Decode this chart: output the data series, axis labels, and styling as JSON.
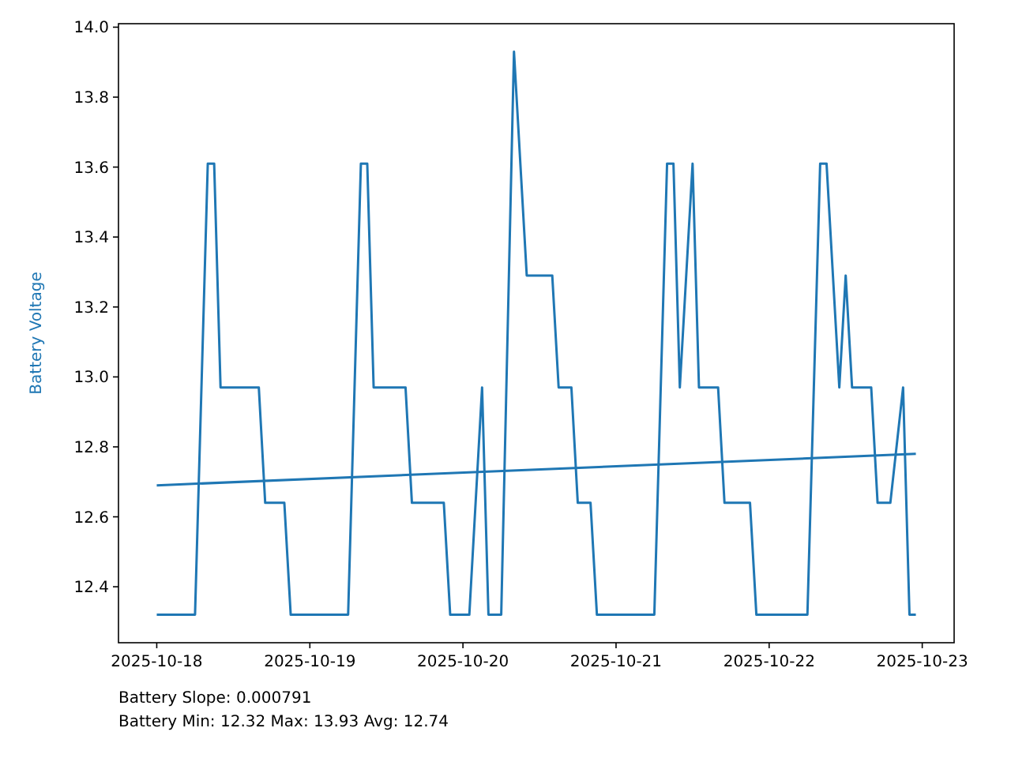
{
  "chart_data": {
    "type": "line",
    "ylabel": "Battery Voltage",
    "xlim": [
      "2025-10-17T18:00",
      "2025-10-23T05:00"
    ],
    "ylim": [
      12.24,
      14.01
    ],
    "xticks": [
      "2025-10-18",
      "2025-10-19",
      "2025-10-20",
      "2025-10-21",
      "2025-10-22",
      "2025-10-23"
    ],
    "yticks": [
      12.4,
      12.6,
      12.8,
      {
        "value": 13,
        "label": "13.0"
      },
      13.2,
      13.4,
      13.6,
      13.8,
      {
        "value": 14,
        "label": "14.0"
      }
    ],
    "grid": false,
    "marker": "none",
    "line_style": "solid",
    "annotations": [
      "Battery Slope: 0.000791",
      "Battery Min: 12.32 Max: 13.93 Avg: 12.74"
    ],
    "series": [
      {
        "color": "#1f77b4",
        "x": [
          "2025-10-18T00:00",
          "2025-10-18T06:00",
          "2025-10-18T08:00",
          "2025-10-18T09:00",
          "2025-10-18T10:00",
          "2025-10-18T16:00",
          "2025-10-18T17:00",
          "2025-10-18T20:00",
          "2025-10-18T21:00",
          "2025-10-19T06:00",
          "2025-10-19T08:00",
          "2025-10-19T09:00",
          "2025-10-19T10:00",
          "2025-10-19T15:00",
          "2025-10-19T16:00",
          "2025-10-19T21:00",
          "2025-10-19T22:00",
          "2025-10-20T01:00",
          "2025-10-20T03:00",
          "2025-10-20T04:00",
          "2025-10-20T06:00",
          "2025-10-20T08:00",
          "2025-10-20T10:00",
          "2025-10-20T14:00",
          "2025-10-20T15:00",
          "2025-10-20T17:00",
          "2025-10-20T18:00",
          "2025-10-20T20:00",
          "2025-10-20T21:00",
          "2025-10-21T06:00",
          "2025-10-21T08:00",
          "2025-10-21T09:00",
          "2025-10-21T10:00",
          "2025-10-21T12:00",
          "2025-10-21T13:00",
          "2025-10-21T16:00",
          "2025-10-21T17:00",
          "2025-10-21T21:00",
          "2025-10-21T22:00",
          "2025-10-22T06:00",
          "2025-10-22T08:00",
          "2025-10-22T09:00",
          "2025-10-22T11:00",
          "2025-10-22T12:00",
          "2025-10-22T13:00",
          "2025-10-22T16:00",
          "2025-10-22T17:00",
          "2025-10-22T19:00",
          "2025-10-22T21:00",
          "2025-10-22T22:00",
          "2025-10-22T23:00"
        ],
        "values": [
          12.32,
          12.32,
          13.61,
          13.61,
          12.97,
          12.97,
          12.64,
          12.64,
          12.32,
          12.32,
          13.61,
          13.61,
          12.97,
          12.97,
          12.64,
          12.64,
          12.32,
          12.32,
          12.97,
          12.32,
          12.32,
          13.93,
          13.29,
          13.29,
          12.97,
          12.97,
          12.64,
          12.64,
          12.32,
          12.32,
          13.61,
          13.61,
          12.97,
          13.61,
          12.97,
          12.97,
          12.64,
          12.64,
          12.32,
          12.32,
          13.61,
          13.61,
          12.97,
          13.29,
          12.97,
          12.97,
          12.64,
          12.64,
          12.97,
          12.32,
          12.32
        ]
      },
      {
        "color": "#1f77b4",
        "x": [
          "2025-10-18T00:00",
          "2025-10-22T23:00"
        ],
        "values": [
          12.69,
          12.78
        ]
      }
    ]
  }
}
